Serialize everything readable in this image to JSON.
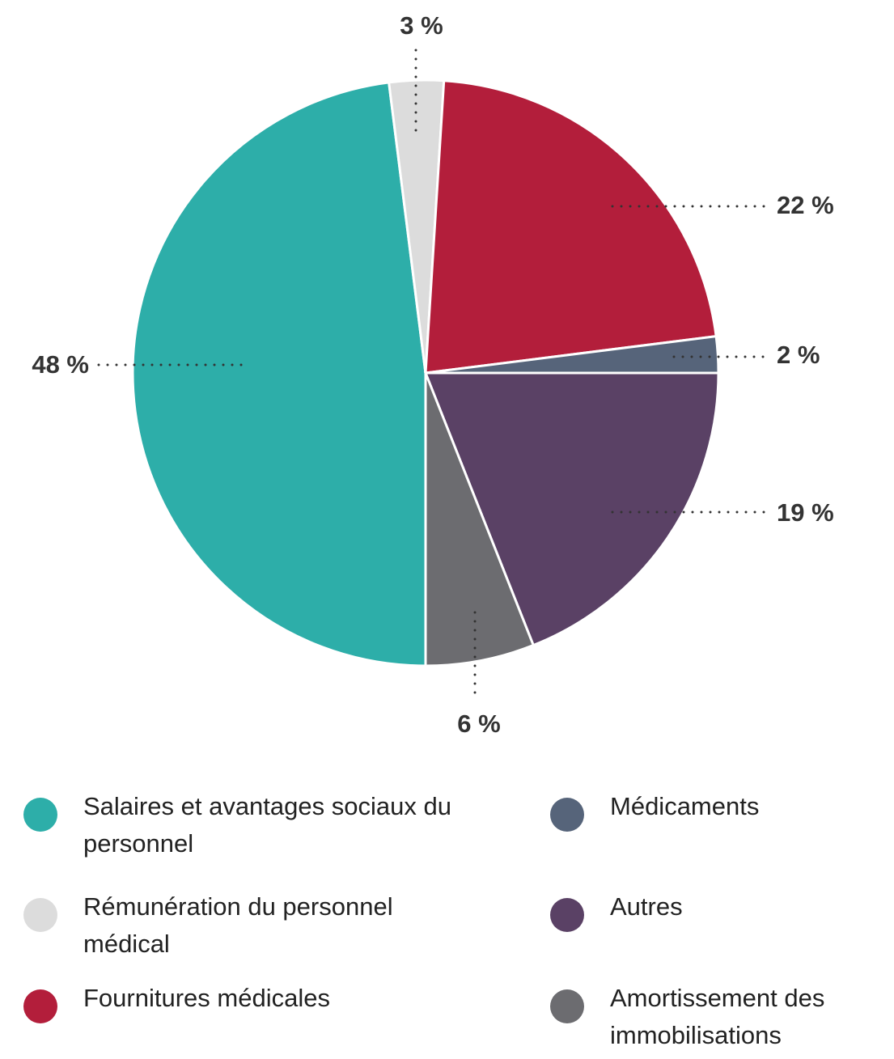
{
  "chart_data": {
    "type": "pie",
    "categories": [
      "Salaires et avantages sociaux du personnel",
      "Rémunération du personnel médical",
      "Fournitures médicales",
      "Médicaments",
      "Autres",
      "Amortissement des immobilisations"
    ],
    "values": [
      48,
      3,
      22,
      2,
      19,
      6
    ],
    "value_labels": [
      "48 %",
      "3 %",
      "22 %",
      "2 %",
      "19 %",
      "6 %"
    ],
    "colors": [
      "#2daea9",
      "#dcdcdc",
      "#b31e3b",
      "#56647a",
      "#5a4165",
      "#6c6c70"
    ]
  }
}
